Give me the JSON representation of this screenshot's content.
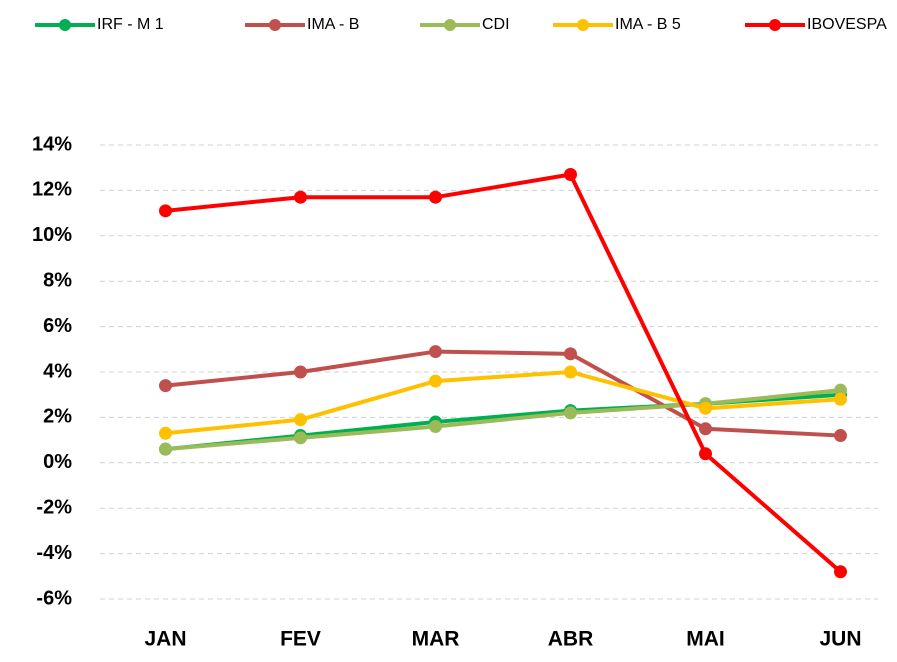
{
  "chart_data": {
    "type": "line",
    "categories": [
      "JAN",
      "FEV",
      "MAR",
      "ABR",
      "MAI",
      "JUN"
    ],
    "series": [
      {
        "name": "IRF - M 1",
        "color": "#00b050",
        "values": [
          0.6,
          1.2,
          1.8,
          2.3,
          2.6,
          3.0
        ]
      },
      {
        "name": "IMA - B",
        "color": "#c0504d",
        "values": [
          3.4,
          4.0,
          4.9,
          4.8,
          1.5,
          1.2
        ]
      },
      {
        "name": "CDI",
        "color": "#9bbb59",
        "values": [
          0.6,
          1.1,
          1.6,
          2.2,
          2.6,
          3.2
        ]
      },
      {
        "name": "IMA - B 5",
        "color": "#ffc000",
        "values": [
          1.3,
          1.9,
          3.6,
          4.0,
          2.4,
          2.8
        ]
      },
      {
        "name": "IBOVESPA",
        "color": "#ff0000",
        "values": [
          11.1,
          11.7,
          11.7,
          12.7,
          0.4,
          -4.8
        ]
      }
    ],
    "ylim": [
      -6,
      14
    ],
    "yticks": [
      {
        "value": -6,
        "label": "-6%"
      },
      {
        "value": -4,
        "label": "-4%"
      },
      {
        "value": -2,
        "label": "-2%"
      },
      {
        "value": 0,
        "label": "0%"
      },
      {
        "value": 2,
        "label": "2%"
      },
      {
        "value": 4,
        "label": "4%"
      },
      {
        "value": 6,
        "label": "6%"
      },
      {
        "value": 8,
        "label": "8%"
      },
      {
        "value": 10,
        "label": "10%"
      },
      {
        "value": 12,
        "label": "12%"
      },
      {
        "value": 14,
        "label": "14%"
      }
    ],
    "grid": true,
    "legend": "top"
  }
}
